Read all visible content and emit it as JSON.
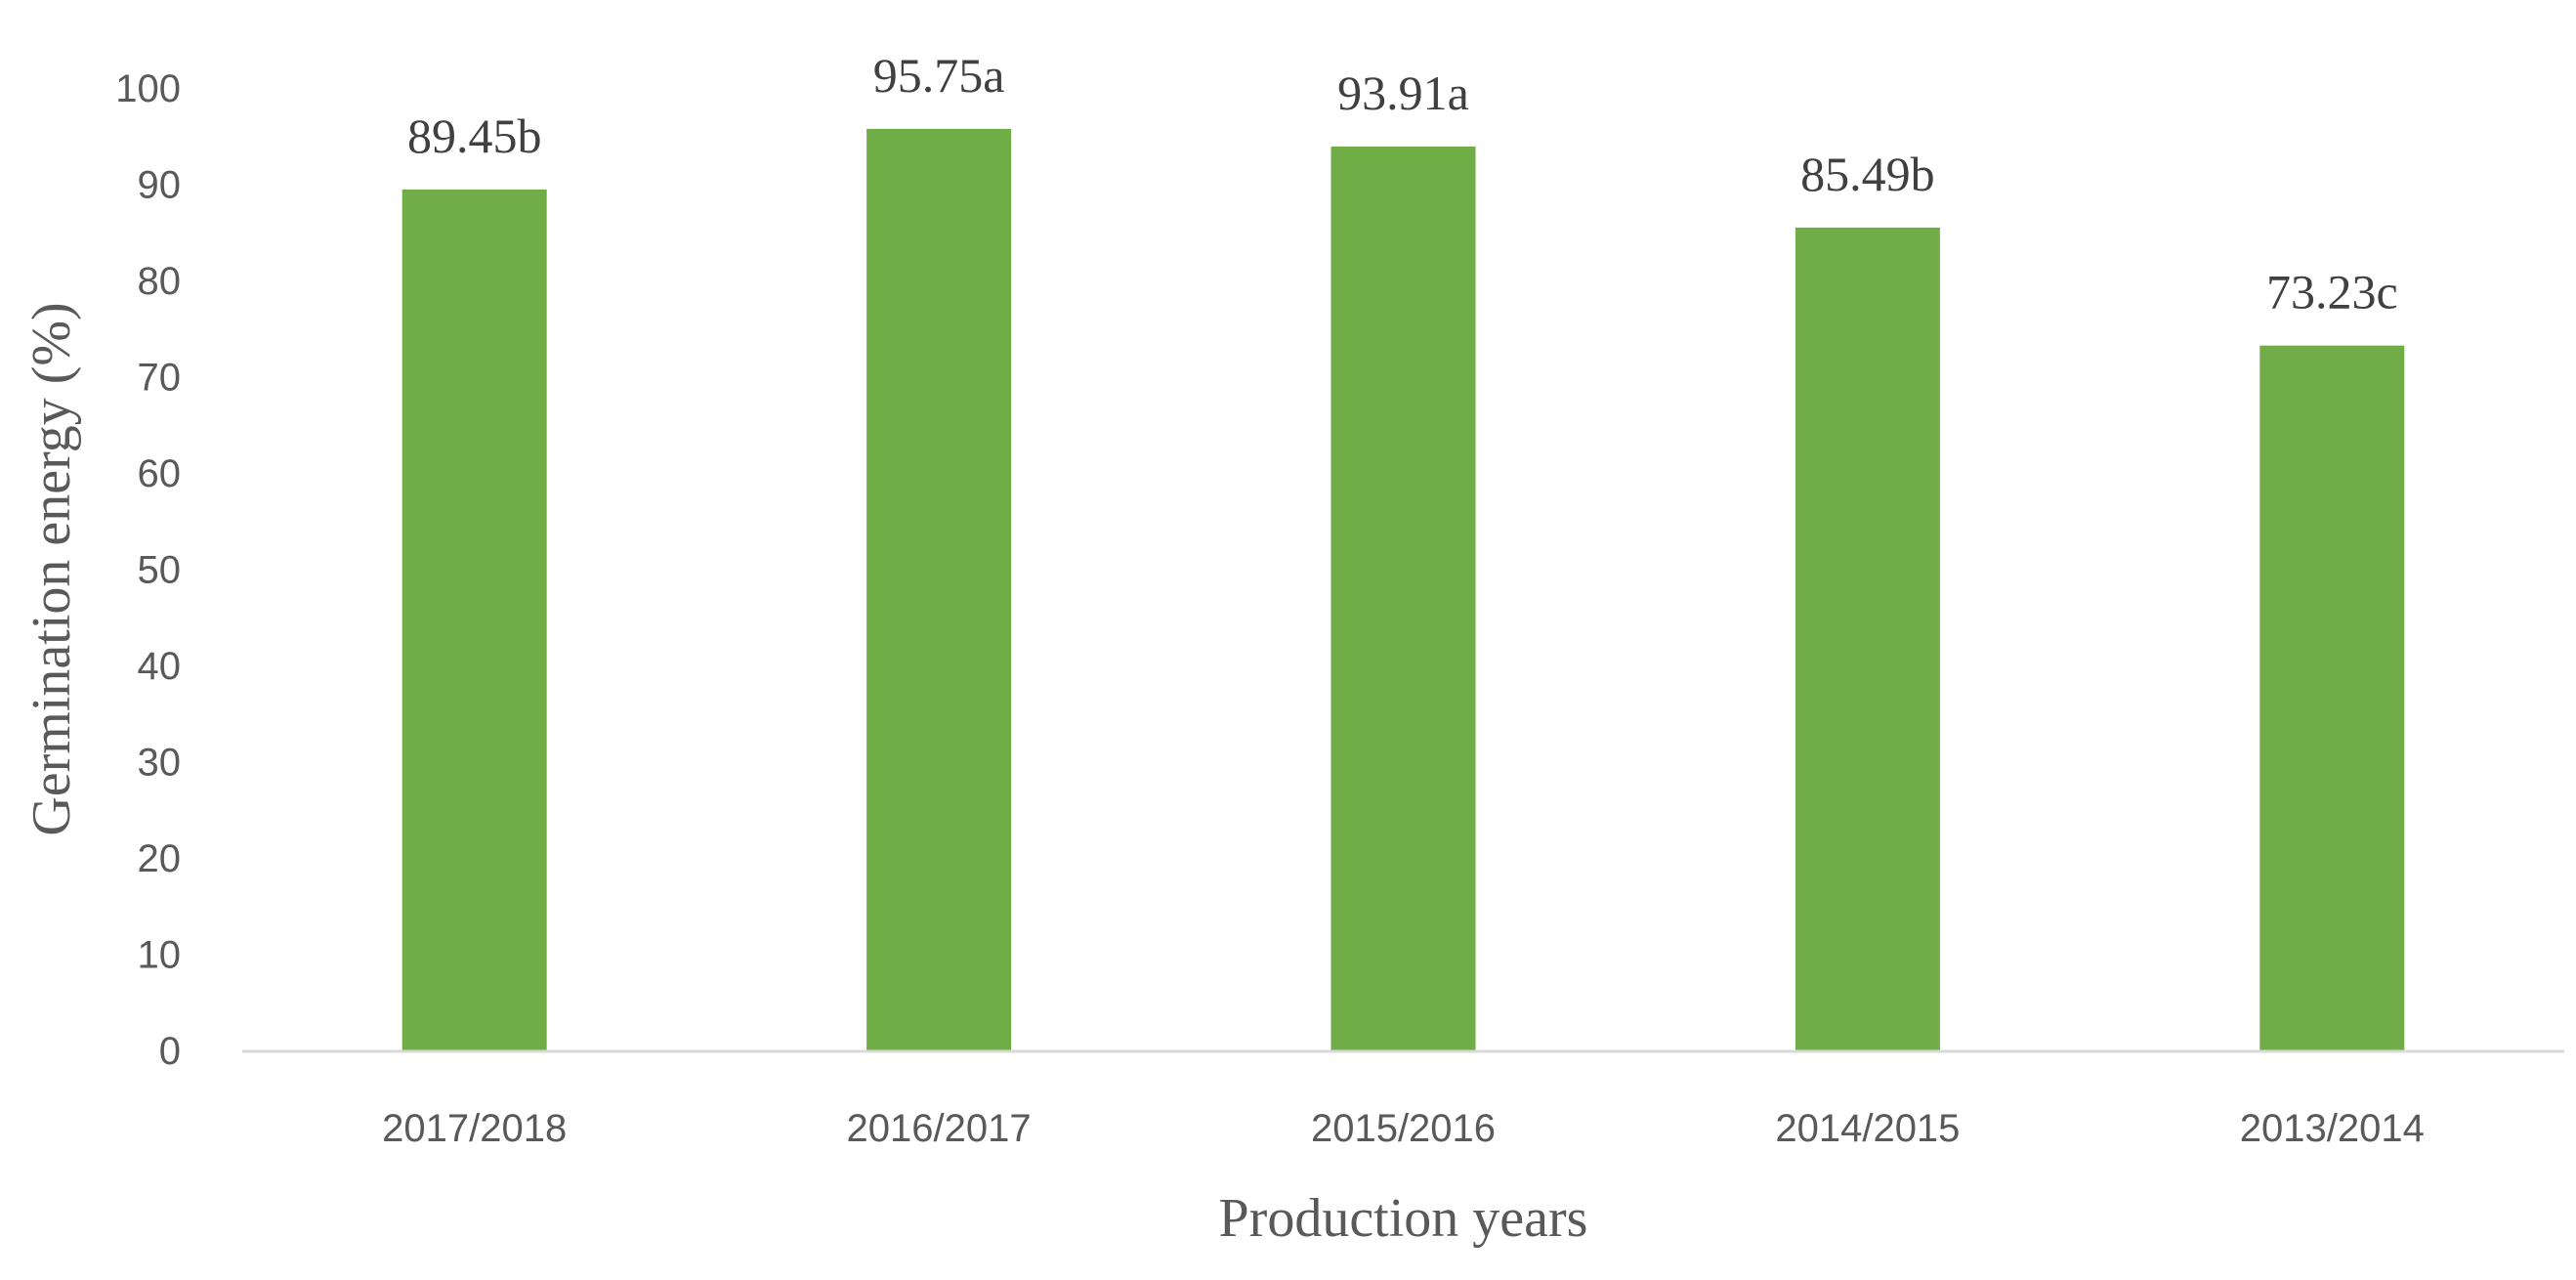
{
  "chart_data": {
    "type": "bar",
    "title": "",
    "xlabel": "Production years",
    "ylabel": "Germination energy (%)",
    "categories": [
      "2017/2018",
      "2016/2017",
      "2015/2016",
      "2014/2015",
      "2013/2014"
    ],
    "values": [
      89.45,
      95.75,
      93.91,
      85.49,
      73.23
    ],
    "data_labels": [
      "89.45b",
      "95.75a",
      "93.91a",
      "85.49b",
      "73.23c"
    ],
    "ylim": [
      0,
      100
    ],
    "yticks": [
      0,
      10,
      20,
      30,
      40,
      50,
      60,
      70,
      80,
      90,
      100
    ],
    "bar_color": "#70AD47",
    "axis_color": "#D9D9D9",
    "grid": false,
    "legend": "none"
  }
}
